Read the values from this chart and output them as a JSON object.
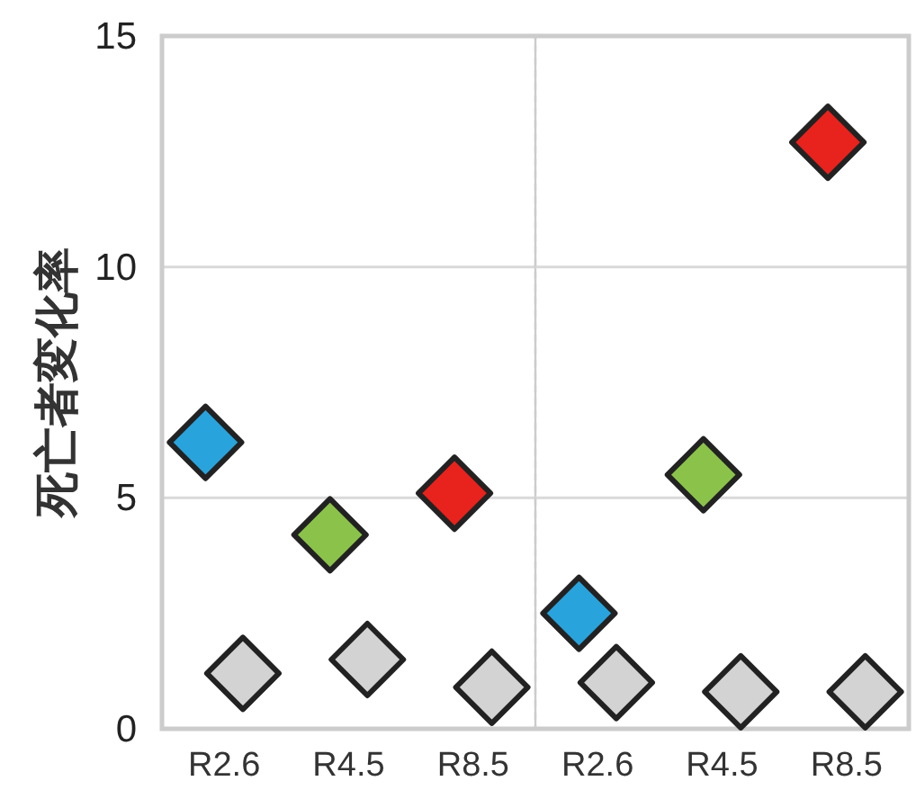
{
  "chart_data": [
    {
      "type": "scatter",
      "ylabel": "死亡者変化率",
      "categories": [
        "R2.6",
        "R4.5",
        "R8.5"
      ],
      "series": [
        {
          "colors": [
            "#29a3dc",
            "#8bc34a",
            "#e8221c"
          ],
          "values": [
            6.2,
            4.2,
            5.1
          ]
        },
        {
          "color": "#d3d3d3",
          "values": [
            1.2,
            1.5,
            0.9
          ]
        }
      ],
      "ylim": [
        0,
        15
      ],
      "yticks": [
        0,
        5,
        10,
        15
      ],
      "grid": "y",
      "marker": "diamond"
    },
    {
      "type": "scatter",
      "categories": [
        "R2.6",
        "R4.5",
        "R8.5"
      ],
      "series": [
        {
          "colors": [
            "#29a3dc",
            "#8bc34a",
            "#e8221c"
          ],
          "values": [
            2.5,
            5.5,
            12.7
          ]
        },
        {
          "color": "#d3d3d3",
          "values": [
            1.0,
            0.8,
            0.8
          ]
        }
      ],
      "ylim": [
        0,
        15
      ],
      "yticks": [
        0,
        5,
        10,
        15
      ],
      "grid": "y",
      "marker": "diamond",
      "tick_labels": "x"
    }
  ]
}
